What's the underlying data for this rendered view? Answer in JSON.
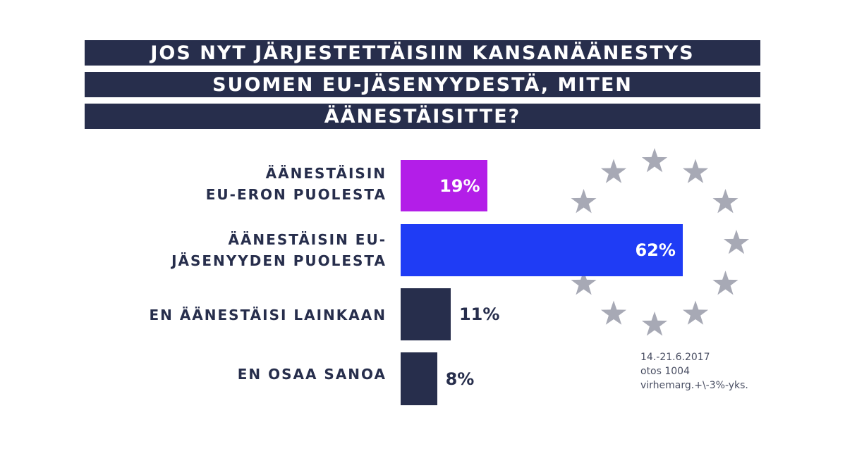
{
  "title_lines": [
    "JOS NYT JÄRJESTETTÄISIIN KANSANÄÄNESTYS",
    "SUOMEN EU-JÄSENYYDESTÄ, MITEN",
    "ÄÄNESTÄISITTE?"
  ],
  "chart_data": {
    "type": "bar",
    "orientation": "horizontal",
    "categories": [
      [
        "ÄÄNESTÄISIN",
        "EU-ERON PUOLESTA"
      ],
      [
        "ÄÄNESTÄISIN EU-",
        "JÄSENYYDEN PUOLESTA"
      ],
      [
        "EN ÄÄNESTÄISI LAINKAAN"
      ],
      [
        "EN OSAA SANOA"
      ]
    ],
    "values": [
      19,
      62,
      11,
      8
    ],
    "value_labels": [
      "19%",
      "62%",
      "11%",
      "8%"
    ],
    "unit": "%",
    "bar_colors": [
      "#b31ee8",
      "#1f3cf5",
      "#272e4c",
      "#272e4c"
    ],
    "value_label_position": [
      "inside",
      "inside",
      "outside",
      "outside"
    ],
    "grid": false,
    "legend": "none"
  },
  "footnote": [
    "14.-21.6.2017",
    "otos 1004",
    "virhemarg.+\\-3%-yks."
  ],
  "decoration": {
    "icon": "eu-star-circle-icon",
    "star_color": "#a7a9b5",
    "star_count": 12
  },
  "colors": {
    "title_bg": "#272e4c",
    "title_text": "#ffffff",
    "label_text": "#272e4c",
    "inside_value_text": "#ffffff"
  }
}
